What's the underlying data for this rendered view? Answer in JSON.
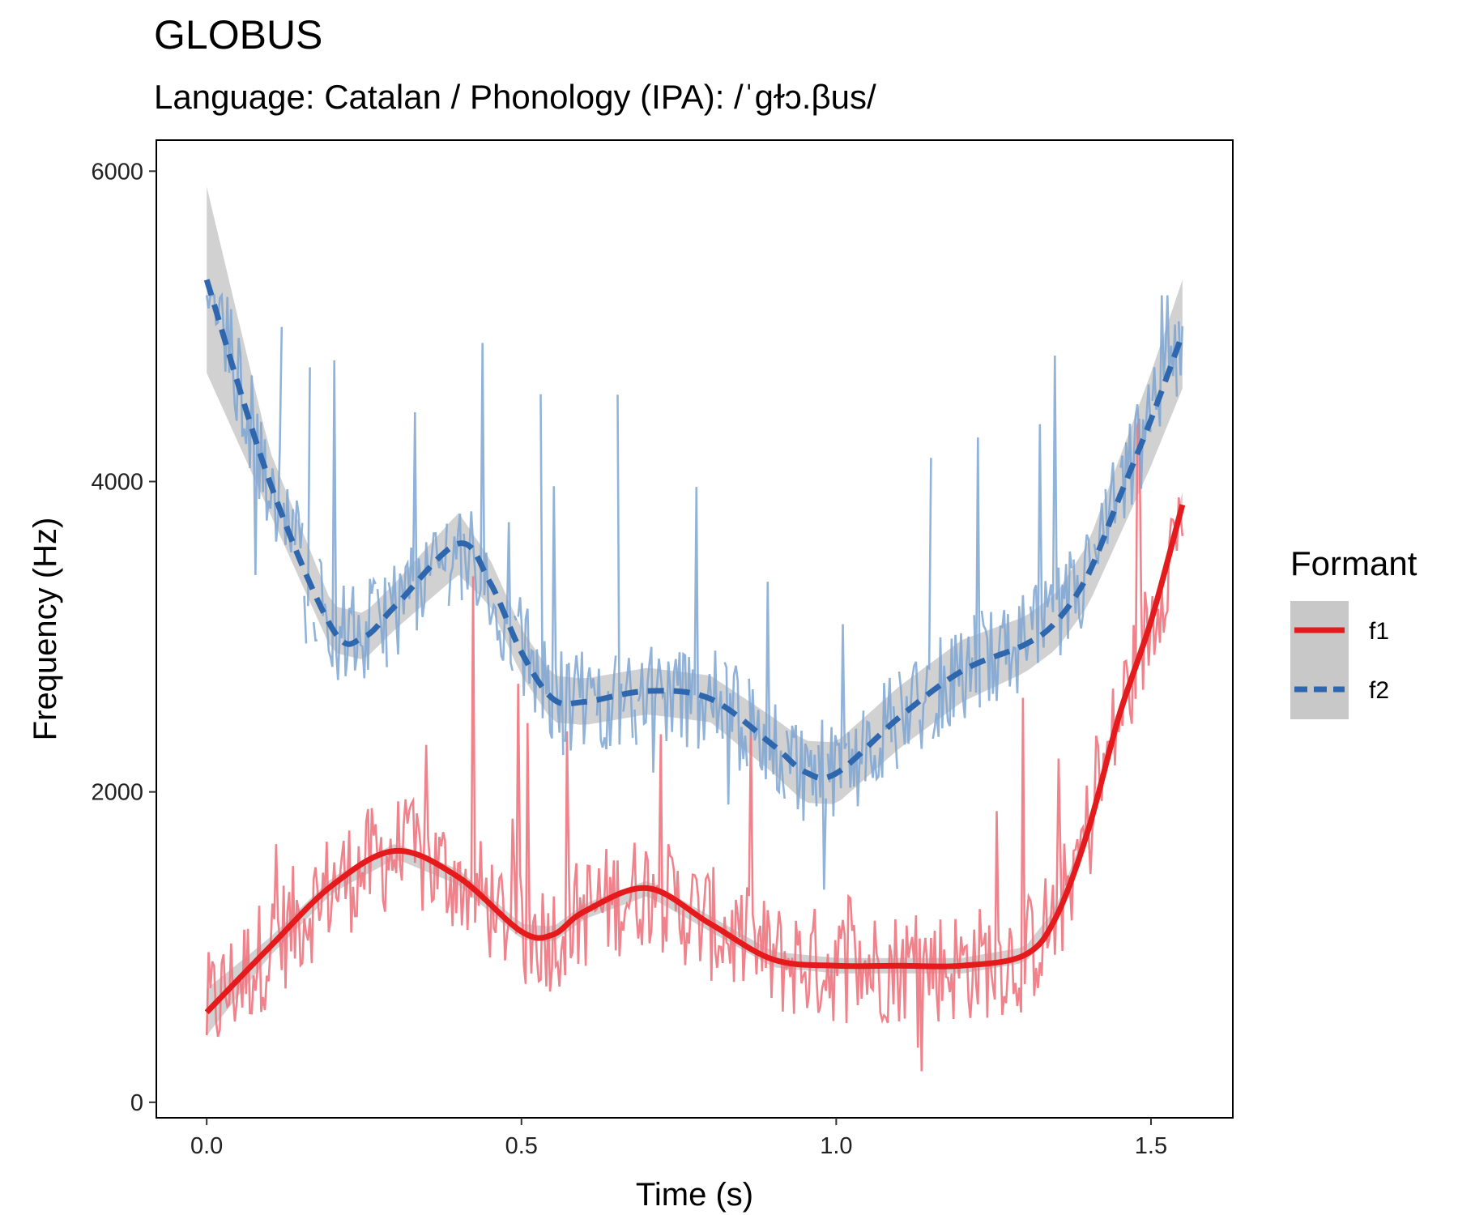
{
  "chart_data": {
    "type": "line",
    "title": "GLOBUS",
    "subtitle": "Language: Catalan / Phonology (IPA): /ˈɡɫɔ.βus/",
    "xlabel": "Time (s)",
    "ylabel": "Frequency (Hz)",
    "xlim": [
      -0.08,
      1.63
    ],
    "ylim": [
      -100,
      6200
    ],
    "x_ticks": [
      0.0,
      0.5,
      1.0,
      1.5
    ],
    "x_tick_labels": [
      "0.0",
      "0.5",
      "1.0",
      "1.5"
    ],
    "y_ticks": [
      0,
      2000,
      4000,
      6000
    ],
    "y_tick_labels": [
      "0",
      "2000",
      "4000",
      "6000"
    ],
    "grid": false,
    "legend": {
      "title": "Formant",
      "position": "right"
    },
    "series": [
      {
        "name": "f1",
        "label": "f1",
        "color": "#e41a1c",
        "raw_color": "#ee7480",
        "line_style": "solid",
        "smooth_x": [
          0.0,
          0.1,
          0.2,
          0.3,
          0.4,
          0.5,
          0.55,
          0.6,
          0.7,
          0.8,
          0.9,
          1.0,
          1.1,
          1.2,
          1.3,
          1.35,
          1.4,
          1.45,
          1.5,
          1.55
        ],
        "smooth_y": [
          580,
          1000,
          1400,
          1620,
          1450,
          1100,
          1080,
          1230,
          1380,
          1150,
          920,
          880,
          880,
          880,
          950,
          1200,
          1750,
          2500,
          3100,
          3850
        ],
        "band_halfwidth": [
          150,
          60,
          50,
          50,
          50,
          50,
          50,
          50,
          50,
          50,
          50,
          50,
          50,
          50,
          50,
          60,
          60,
          60,
          60,
          80
        ],
        "raw_range": {
          "x_start": 0.0,
          "x_end": 1.55,
          "y_min": 200,
          "y_max": 4800
        }
      },
      {
        "name": "f2",
        "label": "f2",
        "color": "#2e67ad",
        "raw_color": "#7fa6d2",
        "line_style": "dashed",
        "smooth_x": [
          0.0,
          0.1,
          0.2,
          0.25,
          0.3,
          0.4,
          0.45,
          0.5,
          0.55,
          0.6,
          0.7,
          0.8,
          0.9,
          0.95,
          1.0,
          1.1,
          1.2,
          1.3,
          1.35,
          1.4,
          1.45,
          1.5,
          1.55
        ],
        "smooth_y": [
          5300,
          4000,
          3050,
          3000,
          3200,
          3600,
          3350,
          2900,
          2600,
          2580,
          2650,
          2600,
          2300,
          2130,
          2120,
          2480,
          2780,
          2950,
          3100,
          3400,
          3900,
          4400,
          4950
        ],
        "band_halfwidth": [
          600,
          200,
          150,
          150,
          150,
          200,
          150,
          150,
          150,
          150,
          150,
          150,
          180,
          200,
          200,
          200,
          200,
          180,
          180,
          200,
          250,
          300,
          350
        ],
        "raw_range": {
          "x_start": 0.0,
          "x_end": 1.55,
          "y_min": 1050,
          "y_max": 5200
        }
      }
    ]
  }
}
